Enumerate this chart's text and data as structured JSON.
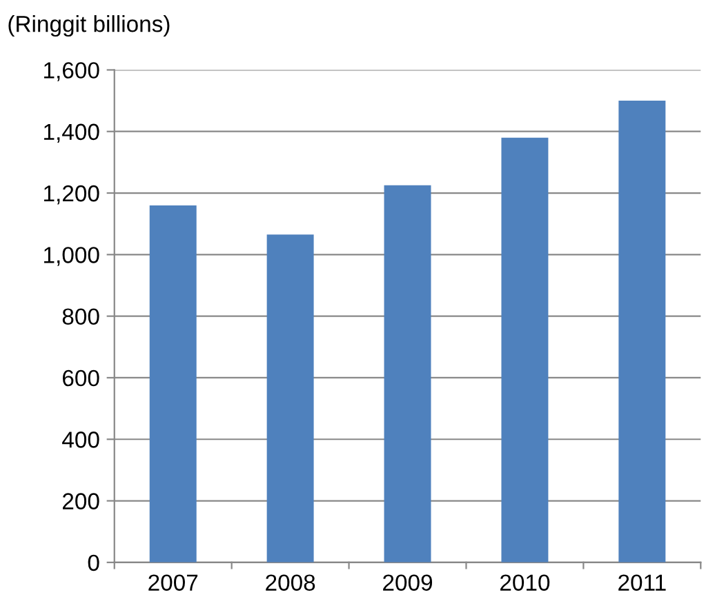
{
  "chart_data": {
    "type": "bar",
    "ylabel": "(Ringgit billions)",
    "categories": [
      "2007",
      "2008",
      "2009",
      "2010",
      "2011"
    ],
    "values": [
      1160,
      1065,
      1225,
      1380,
      1500
    ],
    "color": "#4f81bd",
    "ylim": [
      0,
      1600
    ],
    "yticks": [
      {
        "value": 0,
        "label": "0"
      },
      {
        "value": 200,
        "label": "200"
      },
      {
        "value": 400,
        "label": "400"
      },
      {
        "value": 600,
        "label": "600"
      },
      {
        "value": 800,
        "label": "800"
      },
      {
        "value": 1000,
        "label": "1,000"
      },
      {
        "value": 1200,
        "label": "1,200"
      },
      {
        "value": 1400,
        "label": "1,400"
      },
      {
        "value": 1600,
        "label": "1,600"
      }
    ],
    "grid": "y",
    "legend": false
  }
}
